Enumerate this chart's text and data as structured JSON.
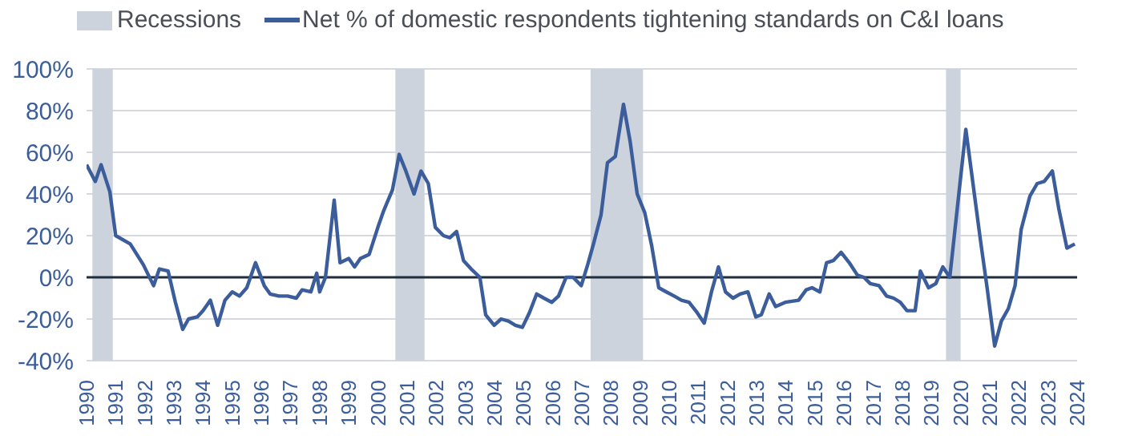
{
  "chart_data": {
    "type": "line",
    "x": [
      1990.0,
      1990.3,
      1990.5,
      1990.8,
      1991.0,
      1991.5,
      1991.95,
      1992.3,
      1992.5,
      1992.8,
      1993.05,
      1993.3,
      1993.5,
      1993.8,
      1994.0,
      1994.25,
      1994.5,
      1994.75,
      1995.0,
      1995.25,
      1995.5,
      1995.8,
      1996.1,
      1996.3,
      1996.6,
      1996.9,
      1997.2,
      1997.4,
      1997.7,
      1997.9,
      1998.0,
      1998.2,
      1998.5,
      1998.7,
      1999.0,
      1999.2,
      1999.4,
      1999.7,
      2000.0,
      2000.2,
      2000.5,
      2000.73,
      2000.96,
      2001.24,
      2001.48,
      2001.73,
      2001.97,
      2002.25,
      2002.47,
      2002.7,
      2002.94,
      2003.2,
      2003.5,
      2003.7,
      2003.99,
      2004.23,
      2004.48,
      2004.72,
      2004.96,
      2005.2,
      2005.45,
      2005.7,
      2005.97,
      2006.2,
      2006.46,
      2006.7,
      2006.98,
      2007.2,
      2007.4,
      2007.66,
      2007.88,
      2008.15,
      2008.43,
      2008.66,
      2008.9,
      2009.16,
      2009.4,
      2009.64,
      2009.9,
      2010.17,
      2010.42,
      2010.68,
      2010.96,
      2011.2,
      2011.45,
      2011.69,
      2011.93,
      2012.19,
      2012.43,
      2012.7,
      2012.97,
      2013.16,
      2013.43,
      2013.65,
      2013.98,
      2014.44,
      2014.7,
      2014.9,
      2015.17,
      2015.4,
      2015.63,
      2015.9,
      2016.18,
      2016.46,
      2016.68,
      2016.9,
      2017.2,
      2017.46,
      2017.7,
      2017.93,
      2018.16,
      2018.44,
      2018.62,
      2018.9,
      2019.15,
      2019.39,
      2019.63,
      2020.18,
      2020.68,
      2020.91,
      2021.17,
      2021.4,
      2021.64,
      2021.87,
      2022.08,
      2022.38,
      2022.63,
      2022.87,
      2023.15,
      2023.37,
      2023.65,
      2023.92
    ],
    "series": [
      {
        "name": "Net % of domestic respondents tightening standards on C&I loans",
        "color": "#3b5d9b",
        "values": [
          54,
          46,
          54,
          41,
          20,
          16,
          6,
          -4,
          4,
          3,
          -12,
          -25,
          -20,
          -19,
          -16,
          -11,
          -23,
          -11,
          -7,
          -9,
          -5,
          7,
          -4,
          -8,
          -9,
          -9,
          -10,
          -6,
          -7,
          2,
          -7,
          0,
          37,
          7,
          9,
          5,
          9,
          11,
          24,
          32,
          42,
          59,
          51,
          40,
          51,
          45,
          24,
          20,
          19,
          22,
          8,
          4,
          0,
          -18,
          -23,
          -20,
          -21,
          -23,
          -24,
          -17,
          -8,
          -10,
          -12,
          -9,
          0,
          0,
          -4,
          6,
          16,
          30,
          55,
          58,
          83,
          65,
          40,
          31,
          15,
          -5,
          -7,
          -9,
          -11,
          -12,
          -17,
          -22,
          -7,
          5,
          -7,
          -10,
          -8,
          -7,
          -19,
          -18,
          -8,
          -14,
          -12,
          -11,
          -6,
          -5,
          -7,
          7,
          8,
          12,
          7,
          1,
          0,
          -3,
          -4,
          -9,
          -10,
          -12,
          -16,
          -16,
          3,
          -5,
          -3,
          5,
          0,
          71,
          18,
          -5,
          -33,
          -21,
          -15,
          -4,
          23,
          39,
          45,
          46,
          51,
          33,
          14,
          16
        ]
      }
    ],
    "bands": [
      {
        "axis": "x",
        "from": 1990.2,
        "to": 1990.9,
        "label": "Recessions",
        "color": "#ccd3dc"
      },
      {
        "axis": "x",
        "from": 2000.6,
        "to": 2001.6,
        "color": "#ccd3dc"
      },
      {
        "axis": "x",
        "from": 2007.3,
        "to": 2009.1,
        "color": "#ccd3dc"
      },
      {
        "axis": "x",
        "from": 2019.5,
        "to": 2020.0,
        "color": "#ccd3dc"
      }
    ],
    "ref_lines": [
      {
        "axis": "y",
        "value": 0,
        "color": "#1f2d3d"
      }
    ],
    "xlim": [
      1990,
      2024
    ],
    "xticks": [
      1990,
      1991,
      1992,
      1993,
      1994,
      1995,
      1996,
      1997,
      1998,
      1999,
      2000,
      2001,
      2002,
      2003,
      2004,
      2005,
      2006,
      2007,
      2008,
      2009,
      2010,
      2011,
      2012,
      2013,
      2014,
      2015,
      2016,
      2017,
      2018,
      2019,
      2020,
      2021,
      2022,
      2023,
      2024
    ],
    "ylim": [
      -40,
      100
    ],
    "yticks": [
      {
        "value": -40,
        "label": "-40%"
      },
      {
        "value": -20,
        "label": "-20%"
      },
      {
        "value": 0,
        "label": "0%"
      },
      {
        "value": 20,
        "label": "20%"
      },
      {
        "value": 40,
        "label": "40%"
      },
      {
        "value": 60,
        "label": "60%"
      },
      {
        "value": 80,
        "label": "80%"
      },
      {
        "value": 100,
        "label": "100%"
      }
    ],
    "grid": "y",
    "legend": "top left",
    "marker": "none",
    "line_style": "solid"
  }
}
